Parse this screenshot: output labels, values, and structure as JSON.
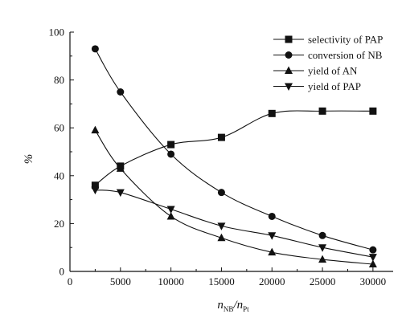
{
  "chart_data": {
    "type": "line",
    "title": "",
    "xlabel_main": "n",
    "xlabel_num_sub": "NB",
    "xlabel_slash": "/n",
    "xlabel_den_sub": "Pt",
    "ylabel": "%",
    "xlim": [
      0,
      32000
    ],
    "ylim": [
      0,
      100
    ],
    "x_ticks": [
      0,
      5000,
      10000,
      15000,
      20000,
      25000,
      30000
    ],
    "y_ticks": [
      0,
      20,
      40,
      60,
      80,
      100
    ],
    "legend_position": "top-right",
    "series": [
      {
        "name": "selectivity of PAP",
        "marker": "square",
        "x": [
          2500,
          5000,
          10000,
          15000,
          20000,
          25000,
          30000
        ],
        "y": [
          36,
          44,
          53,
          56,
          66,
          67,
          67
        ]
      },
      {
        "name": "conversion of NB",
        "marker": "circle",
        "x": [
          2500,
          5000,
          10000,
          15000,
          20000,
          25000,
          30000
        ],
        "y": [
          93,
          75,
          49,
          33,
          23,
          15,
          9
        ]
      },
      {
        "name": "yield of AN",
        "marker": "triangle-up",
        "x": [
          2500,
          5000,
          10000,
          15000,
          20000,
          25000,
          30000
        ],
        "y": [
          59,
          43,
          23,
          14,
          8,
          5,
          3
        ]
      },
      {
        "name": "yield of PAP",
        "marker": "triangle-down",
        "x": [
          2500,
          5000,
          10000,
          15000,
          20000,
          25000,
          30000
        ],
        "y": [
          34,
          33,
          26,
          19,
          15,
          10,
          6
        ]
      }
    ]
  }
}
